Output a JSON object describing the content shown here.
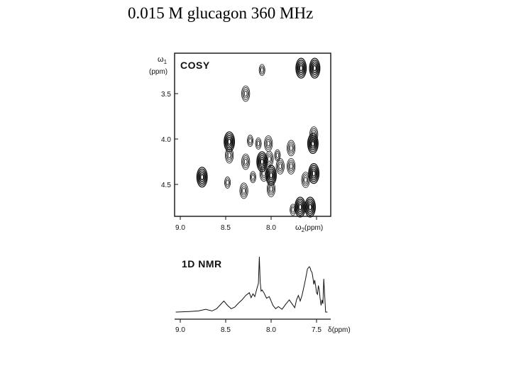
{
  "title": "0.015 M glucagon 360 MHz",
  "cosy": {
    "panel_label": "COSY",
    "y_axis_label_symbol": "ω",
    "y_axis_label_sub": "1",
    "y_axis_unit": "(ppm)",
    "x_axis_label_symbol": "ω",
    "x_axis_label_sub": "2",
    "x_axis_unit": "(ppm)",
    "x_ticks": [
      "9.0",
      "8.5",
      "8.0",
      "7.5"
    ],
    "y_ticks": [
      "3.5",
      "4.0",
      "4.5"
    ]
  },
  "nmr1d": {
    "panel_label": "1D NMR",
    "x_axis_label": "δ(ppm)",
    "x_ticks": [
      "9.0",
      "8.5",
      "8.0",
      "7.5"
    ]
  },
  "chart_data": [
    {
      "type": "scatter",
      "title": "COSY",
      "xlabel": "ω2(ppm)",
      "ylabel": "ω1(ppm)",
      "xlim": [
        9.05,
        7.38
      ],
      "ylim": [
        3.0,
        5.0
      ],
      "note": "2D contour cross-peaks (x = ω2, y = ω1)",
      "points": [
        {
          "x": 7.52,
          "y": 3.22,
          "size": 3
        },
        {
          "x": 7.67,
          "y": 3.22,
          "size": 3
        },
        {
          "x": 8.1,
          "y": 3.24,
          "size": 1
        },
        {
          "x": 8.28,
          "y": 3.5,
          "size": 2
        },
        {
          "x": 7.53,
          "y": 3.95,
          "size": 2
        },
        {
          "x": 7.54,
          "y": 4.05,
          "size": 3
        },
        {
          "x": 8.46,
          "y": 4.03,
          "size": 3
        },
        {
          "x": 8.46,
          "y": 4.18,
          "size": 2
        },
        {
          "x": 8.23,
          "y": 4.02,
          "size": 1
        },
        {
          "x": 8.14,
          "y": 4.05,
          "size": 1
        },
        {
          "x": 8.03,
          "y": 4.05,
          "size": 2
        },
        {
          "x": 7.78,
          "y": 4.1,
          "size": 2
        },
        {
          "x": 7.93,
          "y": 4.18,
          "size": 1
        },
        {
          "x": 8.28,
          "y": 4.25,
          "size": 2
        },
        {
          "x": 8.1,
          "y": 4.25,
          "size": 3
        },
        {
          "x": 8.02,
          "y": 4.22,
          "size": 2
        },
        {
          "x": 7.9,
          "y": 4.3,
          "size": 2
        },
        {
          "x": 7.78,
          "y": 4.3,
          "size": 2
        },
        {
          "x": 8.0,
          "y": 4.4,
          "size": 3
        },
        {
          "x": 8.08,
          "y": 4.38,
          "size": 2
        },
        {
          "x": 8.2,
          "y": 4.42,
          "size": 1
        },
        {
          "x": 7.53,
          "y": 4.38,
          "size": 3
        },
        {
          "x": 7.62,
          "y": 4.45,
          "size": 2
        },
        {
          "x": 8.76,
          "y": 4.42,
          "size": 3
        },
        {
          "x": 8.48,
          "y": 4.48,
          "size": 1
        },
        {
          "x": 8.3,
          "y": 4.57,
          "size": 2
        },
        {
          "x": 8.0,
          "y": 4.55,
          "size": 2
        },
        {
          "x": 7.57,
          "y": 4.75,
          "size": 3
        },
        {
          "x": 7.68,
          "y": 4.75,
          "size": 3
        },
        {
          "x": 7.76,
          "y": 4.78,
          "size": 1
        }
      ]
    },
    {
      "type": "line",
      "title": "1D NMR",
      "xlabel": "δ(ppm)",
      "xlim": [
        9.05,
        7.38
      ],
      "x_ticks": [
        9.0,
        8.5,
        8.0,
        7.5
      ],
      "x": [
        9.05,
        8.9,
        8.8,
        8.72,
        8.65,
        8.6,
        8.56,
        8.52,
        8.48,
        8.44,
        8.4,
        8.36,
        8.32,
        8.28,
        8.24,
        8.22,
        8.2,
        8.18,
        8.16,
        8.14,
        8.13,
        8.12,
        8.11,
        8.1,
        8.08,
        8.05,
        8.02,
        7.98,
        7.95,
        7.92,
        7.88,
        7.84,
        7.8,
        7.77,
        7.74,
        7.72,
        7.7,
        7.68,
        7.66,
        7.64,
        7.62,
        7.6,
        7.58,
        7.57,
        7.56,
        7.55,
        7.54,
        7.53,
        7.52,
        7.51,
        7.5,
        7.49,
        7.48,
        7.47,
        7.46,
        7.45,
        7.44,
        7.43,
        7.42,
        7.41,
        7.4,
        7.39,
        7.38
      ],
      "y": [
        0.0,
        0.01,
        0.02,
        0.05,
        0.02,
        0.06,
        0.13,
        0.2,
        0.12,
        0.06,
        0.09,
        0.16,
        0.22,
        0.3,
        0.35,
        0.26,
        0.33,
        0.28,
        0.4,
        0.52,
        1.0,
        0.55,
        0.38,
        0.4,
        0.35,
        0.25,
        0.28,
        0.12,
        0.06,
        0.1,
        0.05,
        0.14,
        0.22,
        0.15,
        0.08,
        0.22,
        0.3,
        0.2,
        0.3,
        0.45,
        0.6,
        0.78,
        0.82,
        0.8,
        0.74,
        0.72,
        0.62,
        0.5,
        0.58,
        0.48,
        0.35,
        0.32,
        0.48,
        0.4,
        0.24,
        0.12,
        0.22,
        0.15,
        0.6,
        0.3,
        0.0,
        0.0,
        0.0
      ]
    }
  ]
}
